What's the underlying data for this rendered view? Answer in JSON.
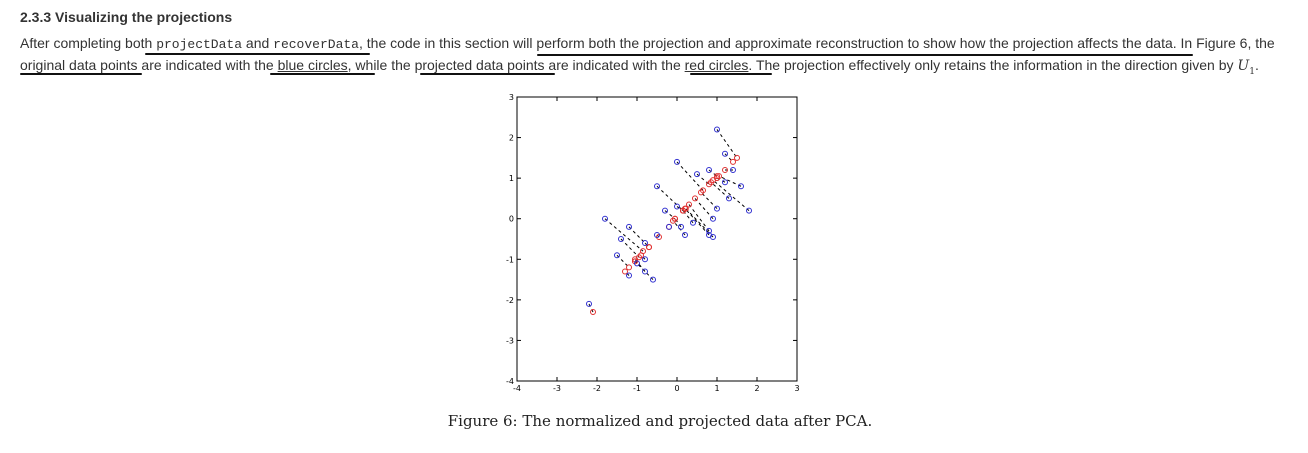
{
  "section": {
    "heading": "2.3.3 Visualizing the projections",
    "p1": "After completing both ",
    "code1": "projectData",
    "p2": " and ",
    "code2": "recoverData",
    "p3": ", the code in this section will perform both the projection and approximate reconstruction to show how the projection affects the data. In Figure 6, the original data points are indicated with the ",
    "blue_link": "blue circles",
    "p4": ", while the projected data points are indicated with the ",
    "red_link": "red circles",
    "p5": ". The projection effectively only retains the information in the direction given by ",
    "math_var": "U",
    "math_sub": "1",
    "p6": "."
  },
  "figure": {
    "caption": "Figure 6: The normalized and projected data after PCA."
  },
  "chart_data": {
    "type": "scatter",
    "xlim": [
      -4,
      3
    ],
    "ylim": [
      -4,
      3
    ],
    "xticks": [
      "-4",
      "-3",
      "-2",
      "-1",
      "0",
      "1",
      "2",
      "3"
    ],
    "yticks": [
      "-4",
      "-3",
      "-2",
      "-1",
      "0",
      "1",
      "2",
      "3"
    ],
    "colors": {
      "original": "#3030d0",
      "projected": "#e03030",
      "line": "#000000"
    },
    "pairs": [
      [
        1.0,
        2.2,
        1.5,
        1.5
      ],
      [
        1.2,
        1.6,
        1.4,
        1.4
      ],
      [
        1.4,
        1.2,
        1.2,
        1.2
      ],
      [
        1.6,
        0.8,
        1.05,
        1.05
      ],
      [
        1.2,
        0.9,
        1.0,
        1.0
      ],
      [
        1.8,
        0.2,
        0.9,
        0.95
      ],
      [
        1.3,
        0.5,
        0.85,
        0.9
      ],
      [
        0.8,
        1.2,
        1.0,
        1.05
      ],
      [
        0.5,
        1.1,
        0.8,
        0.85
      ],
      [
        1.0,
        0.25,
        0.6,
        0.65
      ],
      [
        0.9,
        0.0,
        0.45,
        0.5
      ],
      [
        0.8,
        -0.3,
        0.3,
        0.35
      ],
      [
        0.0,
        1.4,
        0.65,
        0.7
      ],
      [
        -0.5,
        0.8,
        0.15,
        0.2
      ],
      [
        0.0,
        0.3,
        0.15,
        0.2
      ],
      [
        0.4,
        -0.1,
        0.15,
        0.2
      ],
      [
        0.8,
        -0.4,
        0.2,
        0.25
      ],
      [
        0.9,
        -0.45,
        0.22,
        0.25
      ],
      [
        -0.3,
        0.2,
        -0.05,
        0.0
      ],
      [
        0.1,
        -0.2,
        -0.05,
        0.0
      ],
      [
        -0.2,
        -0.2,
        -0.2,
        -0.2
      ],
      [
        0.2,
        -0.4,
        -0.1,
        -0.05
      ],
      [
        -1.8,
        0.0,
        -0.85,
        -0.8
      ],
      [
        -1.2,
        -0.2,
        -0.7,
        -0.7
      ],
      [
        -0.5,
        -0.4,
        -0.45,
        -0.45
      ],
      [
        -0.8,
        -0.6,
        -0.7,
        -0.7
      ],
      [
        -1.4,
        -0.5,
        -0.95,
        -0.95
      ],
      [
        -0.8,
        -1.0,
        -0.9,
        -0.9
      ],
      [
        -1.0,
        -1.1,
        -1.05,
        -1.05
      ],
      [
        -1.5,
        -0.9,
        -1.2,
        -1.2
      ],
      [
        -0.6,
        -1.5,
        -1.05,
        -1.05
      ],
      [
        -0.8,
        -1.3,
        -1.05,
        -1.0
      ],
      [
        -1.2,
        -1.4,
        -1.3,
        -1.3
      ],
      [
        -2.2,
        -2.1,
        -2.1,
        -2.3
      ]
    ]
  }
}
